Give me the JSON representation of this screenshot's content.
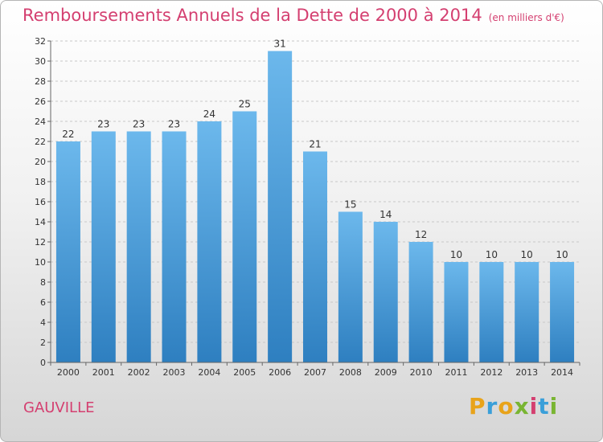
{
  "title": "Remboursements Annuels de la Dette de 2000 à 2014",
  "subtitle": "(en milliers d'€)",
  "commune": "GAUVILLE",
  "logo": {
    "text": "Proxiti"
  },
  "colors": {
    "title": "#d43f70",
    "bar_top": "#6cb8ec",
    "bar_bottom": "#2e7fc0"
  },
  "chart_data": {
    "type": "bar",
    "title": "Remboursements Annuels de la Dette de 2000 à 2014",
    "subtitle": "(en milliers d'€)",
    "xlabel": "",
    "ylabel": "",
    "categories": [
      "2000",
      "2001",
      "2002",
      "2003",
      "2004",
      "2005",
      "2006",
      "2007",
      "2008",
      "2009",
      "2010",
      "2011",
      "2012",
      "2013",
      "2014"
    ],
    "values": [
      22,
      23,
      23,
      23,
      24,
      25,
      31,
      21,
      15,
      14,
      12,
      10,
      10,
      10,
      10
    ],
    "ylim": [
      0,
      32
    ],
    "yticks": [
      0,
      2,
      4,
      6,
      8,
      10,
      12,
      14,
      16,
      18,
      20,
      22,
      24,
      26,
      28,
      30,
      32
    ],
    "grid": true,
    "legend": "none"
  }
}
